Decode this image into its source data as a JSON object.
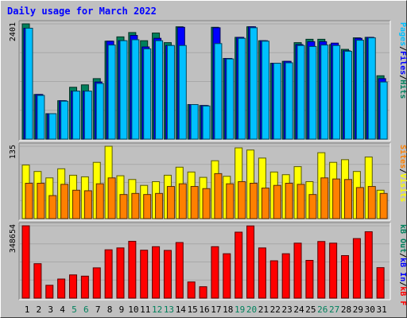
{
  "title": "Daily usage for March 2022",
  "colors": {
    "hits": "#00805C",
    "files": "#0000FF",
    "pages": "#00C0FF",
    "visits": "#FFFF00",
    "sites": "#FF8000",
    "kbin": "#0000FF",
    "kbout": "#00805C",
    "kbf": "#FF0000",
    "weekend": "#00805C",
    "weekday": "#000000"
  },
  "chart_data": {
    "type": "bar",
    "x": [
      "1",
      "2",
      "3",
      "4",
      "5",
      "6",
      "7",
      "8",
      "9",
      "10",
      "11",
      "12",
      "13",
      "14",
      "15",
      "16",
      "17",
      "18",
      "19",
      "20",
      "21",
      "22",
      "23",
      "24",
      "25",
      "26",
      "27",
      "28",
      "29",
      "30",
      "31"
    ],
    "weekend_days": [
      "5",
      "6",
      "12",
      "13",
      "19",
      "20",
      "26",
      "27"
    ],
    "panels": [
      {
        "id": "top",
        "max_label": "2401",
        "ymax": 2401,
        "legend": [
          {
            "text": "Hits",
            "key": "hits"
          },
          {
            "text": "Files",
            "key": "files"
          },
          {
            "text": "Pages",
            "key": "pages"
          }
        ],
        "series": [
          {
            "name": "Hits",
            "values": [
              2401,
              930,
              530,
              800,
              1080,
              1130,
              1260,
              2040,
              2130,
              2220,
              2050,
              2210,
              2010,
              2340,
              720,
              700,
              2330,
              1680,
              2120,
              2340,
              2050,
              1580,
              1620,
              2010,
              2080,
              2080,
              1970,
              1870,
              2110,
              2120,
              1320
            ]
          },
          {
            "name": "Files",
            "values": [
              2310,
              930,
              530,
              800,
              1000,
              1000,
              1190,
              2040,
              2050,
              2160,
              1920,
              2100,
              1950,
              2330,
              720,
              700,
              2320,
              1680,
              2120,
              2340,
              2050,
              1580,
              1620,
              1970,
              2030,
              2030,
              2000,
              1840,
              2100,
              2120,
              1260
            ]
          },
          {
            "name": "Pages",
            "values": [
              2310,
              910,
              530,
              790,
              1000,
              1000,
              1160,
              1960,
              2050,
              2070,
              1880,
              2050,
              1950,
              1950,
              720,
              690,
              1990,
              1670,
              2100,
              2320,
              2040,
              1580,
              1590,
              1950,
              1930,
              1960,
              1950,
              1830,
              2060,
              2110,
              1190
            ]
          }
        ]
      },
      {
        "id": "middle",
        "max_label": "135",
        "ymax": 135,
        "legend": [
          {
            "text": "Visits",
            "key": "visits"
          },
          {
            "text": "Sites",
            "key": "sites"
          }
        ],
        "series": [
          {
            "name": "Visits",
            "values": [
              100,
              88,
              76,
              93,
              81,
              78,
              105,
              135,
              80,
              73,
              62,
              69,
              81,
              96,
              87,
              77,
              108,
              79,
              132,
              128,
              113,
              87,
              82,
              97,
              69,
              123,
              105,
              110,
              88,
              115,
              53
            ]
          },
          {
            "name": "Sites",
            "values": [
              66,
              66,
              43,
              64,
              53,
              52,
              65,
              76,
              45,
              47,
              45,
              47,
              60,
              65,
              60,
              56,
              84,
              65,
              69,
              66,
              57,
              62,
              66,
              64,
              45,
              76,
              74,
              73,
              58,
              60,
              47
            ]
          }
        ]
      },
      {
        "id": "bottom",
        "max_label": "348654",
        "ymax": 348654,
        "legend": [
          {
            "text": "kB F",
            "key": "kbf"
          },
          {
            "text": "kB In",
            "key": "kbin"
          },
          {
            "text": "kB Out",
            "key": "kbout"
          }
        ],
        "series": [
          {
            "name": "kB F",
            "values": [
              348654,
              166000,
              62000,
              92000,
              112000,
              106000,
              146000,
              233000,
              242000,
              274000,
              231000,
              248000,
              230000,
              268000,
              78000,
              55000,
              248000,
              214000,
              318000,
              348000,
              242000,
              180000,
              214000,
              265000,
              182000,
              273000,
              265000,
              205000,
              287000,
              320000,
              147000
            ]
          },
          {
            "name": "kB In",
            "values": [
              0,
              0,
              0,
              0,
              0,
              0,
              0,
              0,
              0,
              0,
              0,
              0,
              0,
              0,
              0,
              0,
              0,
              0,
              0,
              0,
              0,
              0,
              0,
              0,
              0,
              0,
              0,
              0,
              0,
              0,
              0
            ]
          },
          {
            "name": "kB Out",
            "values": [
              0,
              0,
              0,
              0,
              0,
              0,
              0,
              0,
              0,
              0,
              0,
              0,
              0,
              0,
              0,
              0,
              0,
              0,
              0,
              0,
              0,
              0,
              0,
              0,
              0,
              0,
              0,
              0,
              0,
              0,
              0
            ]
          }
        ]
      }
    ]
  }
}
